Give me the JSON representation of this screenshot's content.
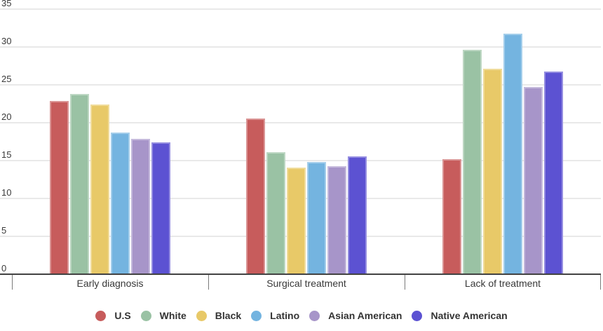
{
  "chart_data": {
    "type": "bar",
    "title": "",
    "xlabel": "",
    "ylabel": "",
    "categories": [
      "Early diagnosis",
      "Surgical treatment",
      "Lack of treatment"
    ],
    "series": [
      {
        "name": "U.S",
        "color": "#C75C5C",
        "values": [
          22.8,
          20.5,
          15.1
        ]
      },
      {
        "name": "White",
        "color": "#9AC2A4",
        "values": [
          23.7,
          16.0,
          29.5
        ]
      },
      {
        "name": "Black",
        "color": "#E8C968",
        "values": [
          22.3,
          14.0,
          27.0
        ]
      },
      {
        "name": "Latino",
        "color": "#74B4E0",
        "values": [
          18.6,
          14.7,
          31.7
        ]
      },
      {
        "name": "Asian American",
        "color": "#A795C9",
        "values": [
          17.8,
          14.2,
          24.6
        ]
      },
      {
        "name": "Native American",
        "color": "#5C52D2",
        "values": [
          17.3,
          15.5,
          26.7
        ]
      }
    ],
    "yticks": [
      0,
      5,
      10,
      15,
      20,
      25,
      30,
      35
    ],
    "ylim": [
      0,
      35
    ],
    "grid": true,
    "legend_position": "bottom",
    "axis_colors": {
      "gridline": "#e9e9e9",
      "axis_line": "#424242",
      "tick": "#7a7a7a"
    }
  }
}
